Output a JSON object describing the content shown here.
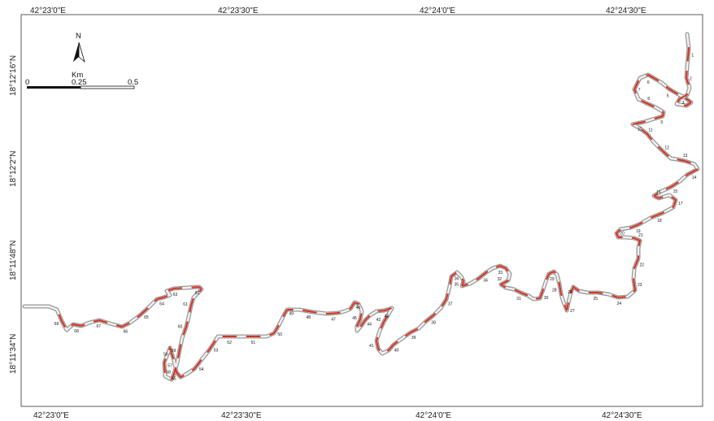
{
  "map": {
    "type": "road-alignment-map",
    "colors": {
      "road_casing": "#9a9a9a",
      "road_fill": "#f2f2f2",
      "highlight_segments": "#d7301f",
      "frame": "#333333"
    },
    "graticule": {
      "top_lon_labels": [
        "42°23'0\"E",
        "42°23'30\"E",
        "42°24'0\"E",
        "42°24'30\"E"
      ],
      "bottom_lon_labels": [
        "42°23'0\"E",
        "42°23'30\"E",
        "42°24'0\"E",
        "42°24'30\"E"
      ],
      "left_lat_labels": [
        "18°12'16\"N",
        "18°12'2\"N",
        "18°11'48\"N",
        "18°11'34\"N"
      ]
    },
    "north_arrow": {
      "label": "N",
      "icon": "north-arrow-icon"
    },
    "scale_bar": {
      "unit": "Km",
      "ticks": [
        "0",
        "0.25",
        "0.5"
      ]
    },
    "segment_labels": [
      "1",
      "2",
      "3",
      "4",
      "5",
      "6",
      "7",
      "8",
      "9",
      "10",
      "11",
      "12",
      "13",
      "14",
      "15",
      "16",
      "17",
      "18",
      "19",
      "20",
      "21",
      "22",
      "23",
      "24",
      "25",
      "26",
      "27",
      "28",
      "29",
      "30",
      "31",
      "32",
      "33",
      "34",
      "35",
      "36",
      "37",
      "38",
      "39",
      "40",
      "41",
      "42",
      "43",
      "44",
      "45",
      "46",
      "47",
      "48",
      "49",
      "50",
      "51",
      "52",
      "53",
      "54",
      "55",
      "56",
      "57",
      "58",
      "59",
      "60",
      "61",
      "62",
      "63",
      "64",
      "65",
      "66",
      "67",
      "68",
      "69"
    ]
  }
}
